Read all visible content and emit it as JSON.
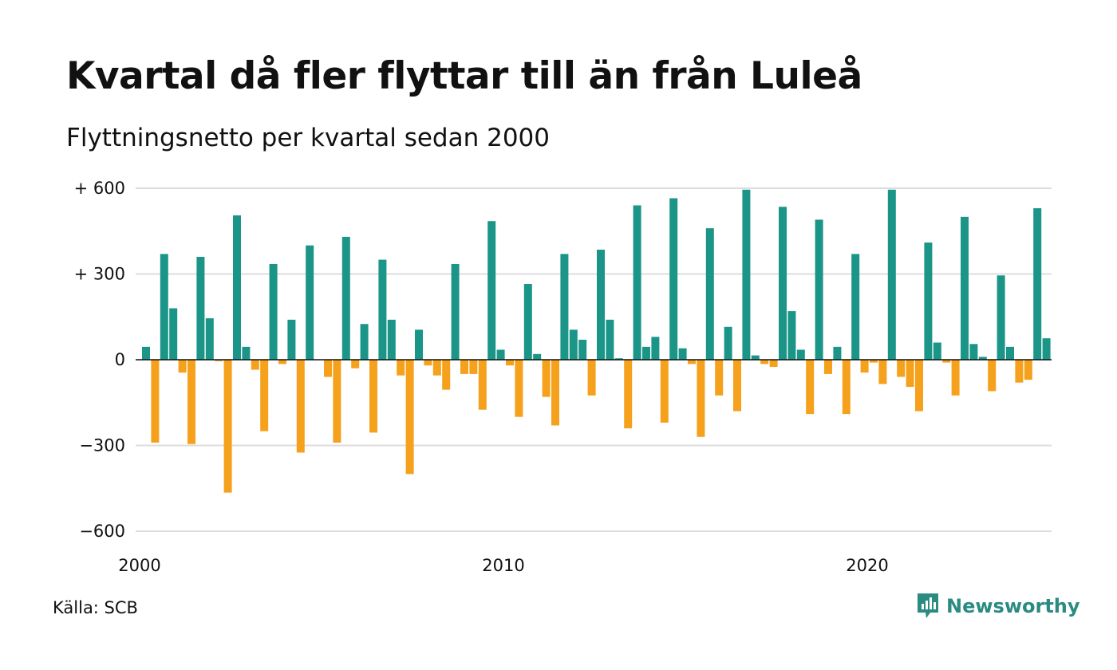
{
  "title": "Kvartal då fler flyttar till än från Luleå",
  "subtitle": "Flyttningsnetto per kvartal sedan 2000",
  "source": "Källa: SCB",
  "brand": {
    "name": "Newsworthy",
    "icon": "newsworthy-logo-icon",
    "color": "#2a8b80"
  },
  "chart_data": {
    "type": "bar",
    "x_start": "2000 Q1",
    "ylim": [
      -600,
      600
    ],
    "yticks": [
      600,
      300,
      0,
      -300,
      -600
    ],
    "ytick_labels": [
      "+ 600",
      "+ 300",
      "0",
      "−300",
      "−600"
    ],
    "xtick_labels": [
      "2000",
      "2010",
      "2020"
    ],
    "colors": {
      "positive": "#1a9587",
      "negative": "#f5a11b",
      "grid": "#dddddd"
    },
    "categories": [
      "2000 Q1",
      "2000 Q2",
      "2000 Q3",
      "2000 Q4",
      "2001 Q1",
      "2001 Q2",
      "2001 Q3",
      "2001 Q4",
      "2002 Q1",
      "2002 Q2",
      "2002 Q3",
      "2002 Q4",
      "2003 Q1",
      "2003 Q2",
      "2003 Q3",
      "2003 Q4",
      "2004 Q1",
      "2004 Q2",
      "2004 Q3",
      "2004 Q4",
      "2005 Q1",
      "2005 Q2",
      "2005 Q3",
      "2005 Q4",
      "2006 Q1",
      "2006 Q2",
      "2006 Q3",
      "2006 Q4",
      "2007 Q1",
      "2007 Q2",
      "2007 Q3",
      "2007 Q4",
      "2008 Q1",
      "2008 Q2",
      "2008 Q3",
      "2008 Q4",
      "2009 Q1",
      "2009 Q2",
      "2009 Q3",
      "2009 Q4",
      "2010 Q1",
      "2010 Q2",
      "2010 Q3",
      "2010 Q4",
      "2011 Q1",
      "2011 Q2",
      "2011 Q3",
      "2011 Q4",
      "2012 Q1",
      "2012 Q2",
      "2012 Q3",
      "2012 Q4",
      "2013 Q1",
      "2013 Q2",
      "2013 Q3",
      "2013 Q4",
      "2014 Q1",
      "2014 Q2",
      "2014 Q3",
      "2014 Q4",
      "2015 Q1",
      "2015 Q2",
      "2015 Q3",
      "2015 Q4",
      "2016 Q1",
      "2016 Q2",
      "2016 Q3",
      "2016 Q4",
      "2017 Q1",
      "2017 Q2",
      "2017 Q3",
      "2017 Q4",
      "2018 Q1",
      "2018 Q2",
      "2018 Q3",
      "2018 Q4",
      "2019 Q1",
      "2019 Q2",
      "2019 Q3",
      "2019 Q4",
      "2020 Q1",
      "2020 Q2",
      "2020 Q3",
      "2020 Q4",
      "2021 Q1",
      "2021 Q2",
      "2021 Q3",
      "2021 Q4",
      "2022 Q1",
      "2022 Q2",
      "2022 Q3",
      "2022 Q4",
      "2023 Q1",
      "2023 Q2",
      "2023 Q3",
      "2023 Q4",
      "2024 Q1",
      "2024 Q2",
      "2024 Q3",
      "2024 Q4"
    ],
    "values": [
      45,
      -290,
      370,
      180,
      -45,
      -295,
      360,
      145,
      -5,
      -465,
      505,
      45,
      -35,
      -250,
      335,
      -15,
      140,
      -325,
      400,
      0,
      -60,
      -290,
      430,
      -30,
      125,
      -255,
      350,
      140,
      -55,
      -400,
      105,
      -20,
      -55,
      -105,
      335,
      -50,
      -50,
      -175,
      485,
      35,
      -20,
      -200,
      265,
      20,
      -130,
      -230,
      370,
      105,
      70,
      -125,
      385,
      140,
      5,
      -240,
      540,
      45,
      80,
      -220,
      565,
      40,
      -15,
      -270,
      460,
      -125,
      115,
      -180,
      595,
      15,
      -15,
      -25,
      535,
      170,
      35,
      -190,
      490,
      -50,
      45,
      -190,
      370,
      -45,
      -10,
      -85,
      595,
      -60,
      -95,
      -180,
      410,
      60,
      -10,
      -125,
      500,
      55,
      10,
      -110,
      295,
      45,
      -80,
      -70,
      530,
      75
    ]
  }
}
